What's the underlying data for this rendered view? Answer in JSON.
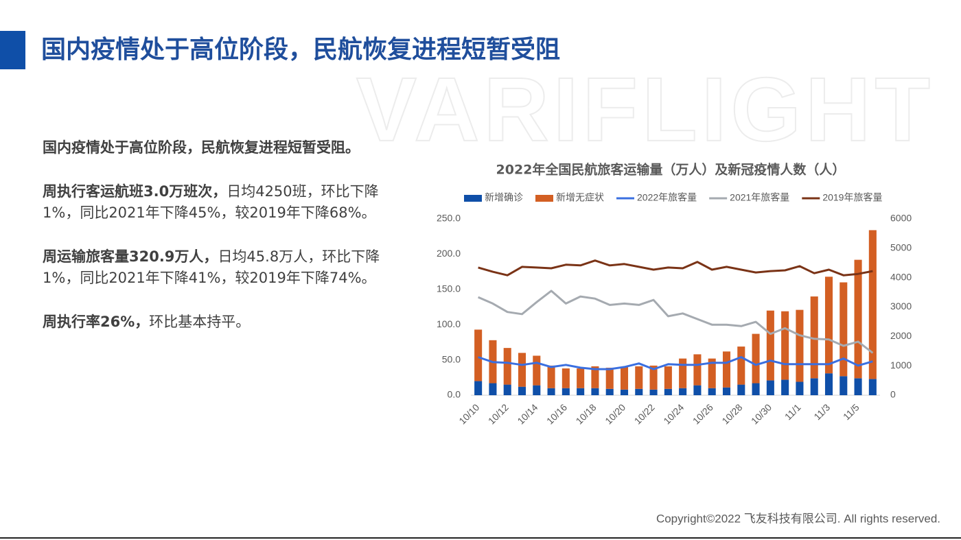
{
  "header": {
    "title": "国内疫情处于高位阶段，民航恢复进程短暂受阻"
  },
  "watermark": "VARIFLIGHT",
  "paragraphs": [
    {
      "bold": "国内疫情处于高位阶段，民航恢复进程短暂受阻。",
      "text": ""
    },
    {
      "bold": "周执行客运航班3.0万班次，",
      "text": "日均4250班，环比下降1%，同比2021年下降45%，较2019年下降68%。"
    },
    {
      "bold": "周运输旅客量320.9万人，",
      "text": "日均45.8万人，环比下降1%，同比2021年下降41%，较2019年下降74%。"
    },
    {
      "bold": "周执行率26%，",
      "text": "环比基本持平。"
    }
  ],
  "chart_data": {
    "type": "bar",
    "stacked": true,
    "title": "2022年全国民航旅客运输量（万人）及新冠疫情人数（人）",
    "categories": [
      "10/10",
      null,
      "10/12",
      null,
      "10/14",
      null,
      "10/16",
      null,
      "10/18",
      null,
      "10/20",
      null,
      "10/22",
      null,
      "10/24",
      null,
      "10/26",
      null,
      "10/28",
      null,
      "10/30",
      null,
      "11/1",
      null,
      "11/3",
      null,
      "11/5",
      null
    ],
    "series": [
      {
        "name": "新增确诊",
        "type": "bar",
        "axis": "y2",
        "color": "#0f4fa8",
        "values": [
          480,
          408,
          360,
          288,
          336,
          240,
          240,
          240,
          240,
          216,
          192,
          216,
          192,
          216,
          240,
          336,
          240,
          264,
          360,
          408,
          504,
          528,
          456,
          576,
          744,
          648,
          576,
          552
        ]
      },
      {
        "name": "新增无症状",
        "type": "bar",
        "axis": "y2",
        "color": "#d35f23",
        "values": [
          1752,
          1464,
          1248,
          1152,
          1008,
          768,
          672,
          672,
          744,
          720,
          768,
          768,
          816,
          768,
          1008,
          1056,
          1008,
          1224,
          1296,
          1680,
          2376,
          2328,
          2448,
          2784,
          3288,
          3192,
          4032,
          5064
        ]
      },
      {
        "name": "2022年旅客量",
        "type": "line",
        "color": "#3a6fe0",
        "values": [
          54,
          47,
          46,
          43,
          46,
          40,
          43,
          39,
          37,
          37,
          40,
          45,
          37,
          44,
          43,
          43,
          46,
          46,
          54,
          43,
          49,
          44,
          44,
          44,
          44,
          52,
          42,
          48
        ]
      },
      {
        "name": "2021年旅客量",
        "type": "line",
        "color": "#a5aab0",
        "values": [
          139,
          130,
          118,
          115,
          132,
          148,
          130,
          140,
          137,
          128,
          130,
          128,
          135,
          112,
          116,
          108,
          100,
          100,
          98,
          104,
          87,
          95,
          85,
          80,
          79,
          70,
          76,
          60
        ]
      },
      {
        "name": "2019年旅客量",
        "type": "line",
        "color": "#7a3316",
        "values": [
          181,
          175,
          170,
          182,
          181,
          180,
          185,
          184,
          191,
          184,
          186,
          182,
          178,
          181,
          180,
          189,
          178,
          182,
          178,
          174,
          176,
          177,
          183,
          173,
          178,
          170,
          172,
          176
        ]
      }
    ],
    "ylim": [
      0,
      250
    ],
    "yticks": [
      {
        "value": 0,
        "label": "0.0"
      },
      {
        "value": 50,
        "label": "50.0"
      },
      {
        "value": 100,
        "label": "100.0"
      },
      {
        "value": 150,
        "label": "150.0"
      },
      {
        "value": 200,
        "label": "200.0"
      },
      {
        "value": 250,
        "label": "250.0"
      }
    ],
    "y2lim": [
      0,
      6000
    ],
    "y2ticks": [
      0,
      1000,
      2000,
      3000,
      4000,
      5000,
      6000
    ],
    "legend": "top"
  },
  "footer": {
    "copyright": "Copyright©2022 飞友科技有限公司. All rights reserved."
  }
}
